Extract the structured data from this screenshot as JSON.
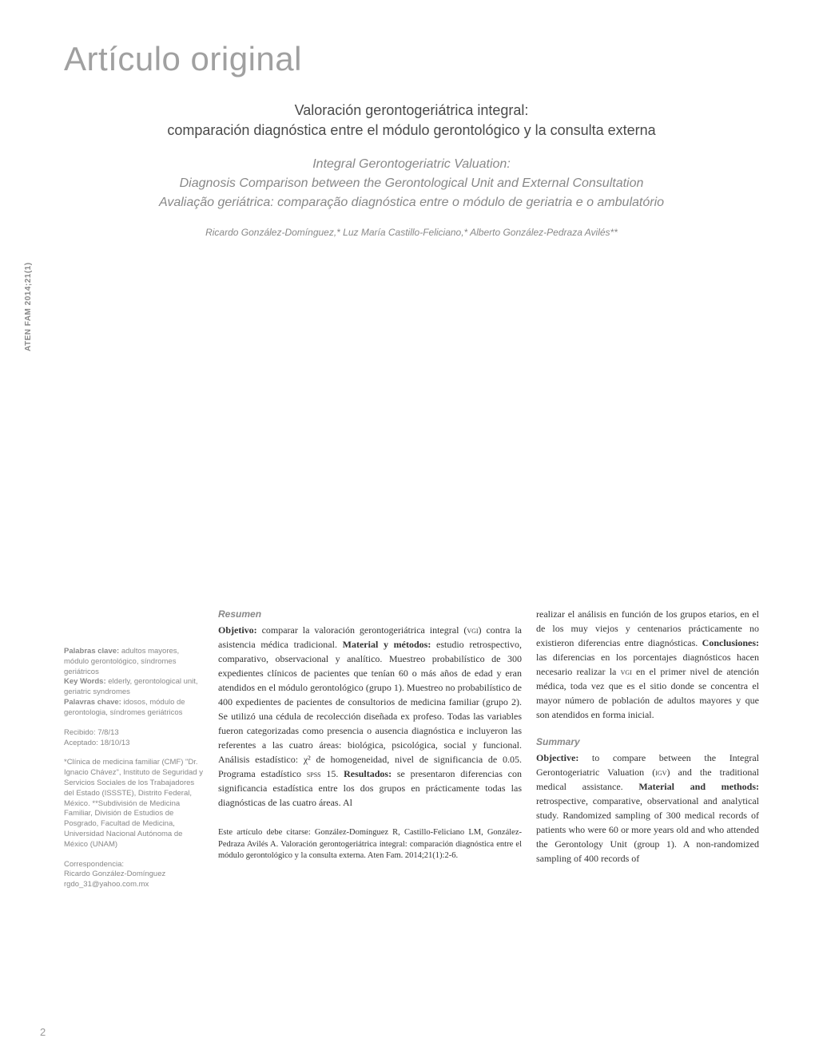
{
  "article_type": "Artículo original",
  "journal_ref": "ATEN FAM 2014;21(1)",
  "page_number": "2",
  "title": {
    "es_line1": "Valoración gerontogeriátrica integral:",
    "es_line2": "comparación diagnóstica entre el módulo gerontológico y la consulta externa",
    "en_line1": "Integral Gerontogeriatric Valuation:",
    "en_line2": "Diagnosis Comparison between the Gerontological Unit and External Consultation",
    "pt_line": "Avaliação geriátrica: comparação diagnóstica entre o módulo de geriatria e o ambulatório"
  },
  "authors": "Ricardo González-Domínguez,* Luz María Castillo-Feliciano,* Alberto González-Pedraza Avilés**",
  "sidebar": {
    "keywords_es_label": "Palabras clave:",
    "keywords_es": "adultos mayores, módulo gerontológico, síndromes geriátricos",
    "keywords_en_label": "Key Words:",
    "keywords_en": "elderly, gerontological unit, geriatric syndromes",
    "keywords_pt_label": "Palavras chave:",
    "keywords_pt": "idosos, módulo de gerontologia, síndromes geriátricos",
    "received_label": "Recibido:",
    "received": "7/8/13",
    "accepted_label": "Aceptado:",
    "accepted": "18/10/13",
    "affil": "*Clínica de medicina familiar (CMF) \"Dr. Ignacio Chávez\", Instituto de Seguridad y Servicios Sociales de los Trabajadores del Estado (ISSSTE), Distrito Federal, México. **Subdivisión de Medicina Familiar, División de Estudios de Posgrado, Facultad de Medicina, Universidad Nacional Autónoma de México (UNAM)",
    "corr_label": "Correspondencia:",
    "corr_name": "Ricardo González-Domínguez",
    "corr_email": "rgdo_31@yahoo.com.mx"
  },
  "resumen": {
    "heading": "Resumen",
    "body_html": "<b>Objetivo:</b> comparar la valoración gerontogeriátrica integral (<span class='sc'>vgi</span>) contra la asistencia médica tradicional. <b>Material y métodos:</b> estudio retrospectivo, comparativo, observacional y analítico. Muestreo probabilístico de 300 expedientes clínicos de pacientes que tenían 60 o más años de edad y eran atendidos en el módulo gerontológico (grupo 1). Muestreo no probabilístico de 400 expedientes de pacientes de consultorios de medicina familiar (grupo 2). Se utilizó una cédula de recolección diseñada ex profeso. Todas las variables fueron categorizadas como presencia o ausencia diagnóstica e incluyeron las referentes a las cuatro áreas: biológica, psicológica, social y funcional. Análisis estadístico: χ² de homogeneidad, nivel de significancia de 0.05. Programa estadístico <span class='sc'>spss</span> 15. <b>Resultados:</b> se presentaron diferencias con significancia estadística entre los dos grupos en prácticamente todas las diagnósticas de las cuatro áreas. Al"
  },
  "resumen_cont": "realizar el análisis en función de los grupos etarios, en el de los muy viejos y centenarios prácticamente no existieron diferencias entre diagnósticas. <b>Conclusiones:</b> las diferencias en los porcentajes diagnósticos hacen necesario realizar la <span class='sc'>vgi</span> en el primer nivel de atención médica, toda vez que es el sitio donde se concentra el mayor número de población de adultos mayores y que son atendidos en forma inicial.",
  "summary": {
    "heading": "Summary",
    "body_html": "<b>Objective:</b> to compare between the Integral Gerontogeriatric Valuation (<span class='sc'>igv</span>) and the traditional medical assistance. <b>Material and methods:</b> retrospective, comparative, observational and analytical study. Randomized sampling of 300 medical records of patients who were 60 or more years old and who attended the Gerontology Unit (group 1). A non-randomized sampling of 400 records of"
  },
  "citation": "Este artículo debe citarse: González-Domínguez R, Castillo-Feliciano LM, González-Pedraza Avilés A. Valoración gerontogeriátrica integral: comparación diagnóstica entre el módulo gerontológico y la consulta externa. Aten Fam. 2014;21(1):2-6."
}
